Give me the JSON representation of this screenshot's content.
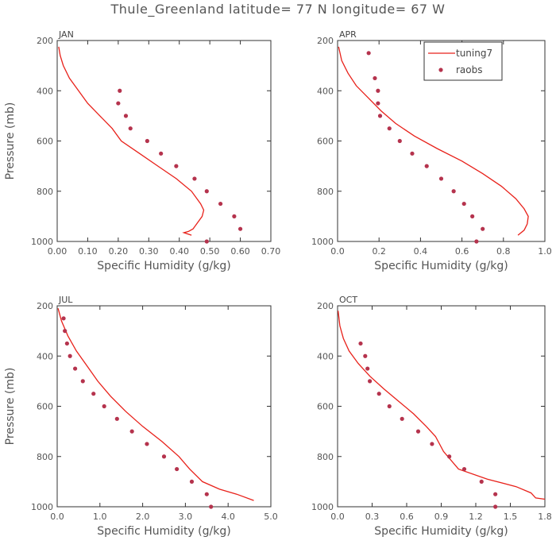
{
  "title": "Thule_Greenland  latitude= 77 N longitude= 67 W",
  "colors": {
    "model": "#e8211a",
    "obs": "#b5334d",
    "axis": "#333333"
  },
  "legend": {
    "model_label": "tuning7",
    "obs_label": "raobs"
  },
  "chart_data": [
    {
      "type": "scatter",
      "panel": "JAN",
      "xlabel": "Specific Humidity (g/kg)",
      "ylabel": "Pressure (mb)",
      "xlim": [
        0,
        0.7
      ],
      "ylim": [
        1000,
        200
      ],
      "xticks": [
        0,
        0.1,
        0.2,
        0.3,
        0.4,
        0.5,
        0.6,
        0.7
      ],
      "xtick_labels": [
        "0.00",
        "0.10",
        "0.20",
        "0.30",
        "0.40",
        "0.50",
        "0.60",
        "0.70"
      ],
      "yticks": [
        200,
        400,
        600,
        800,
        1000
      ],
      "ytick_labels": [
        "200",
        "400",
        "600",
        "800",
        "1000"
      ],
      "series": [
        {
          "name": "tuning7",
          "kind": "line",
          "points": [
            [
              0.005,
              225
            ],
            [
              0.01,
              260
            ],
            [
              0.02,
              300
            ],
            [
              0.04,
              350
            ],
            [
              0.07,
              400
            ],
            [
              0.1,
              450
            ],
            [
              0.14,
              500
            ],
            [
              0.18,
              550
            ],
            [
              0.21,
              600
            ],
            [
              0.27,
              650
            ],
            [
              0.33,
              700
            ],
            [
              0.39,
              750
            ],
            [
              0.44,
              800
            ],
            [
              0.47,
              850
            ],
            [
              0.48,
              875
            ],
            [
              0.475,
              900
            ],
            [
              0.46,
              925
            ],
            [
              0.445,
              950
            ],
            [
              0.43,
              960
            ],
            [
              0.415,
              965
            ],
            [
              0.44,
              975
            ]
          ]
        },
        {
          "name": "raobs",
          "kind": "scatter",
          "points": [
            [
              0.205,
              400
            ],
            [
              0.2,
              450
            ],
            [
              0.225,
              500
            ],
            [
              0.24,
              550
            ],
            [
              0.295,
              600
            ],
            [
              0.34,
              650
            ],
            [
              0.39,
              700
            ],
            [
              0.45,
              750
            ],
            [
              0.49,
              800
            ],
            [
              0.535,
              850
            ],
            [
              0.58,
              900
            ],
            [
              0.6,
              950
            ],
            [
              0.49,
              1000
            ]
          ]
        }
      ]
    },
    {
      "type": "scatter",
      "panel": "APR",
      "xlabel": "Specific Humidity (g/kg)",
      "ylabel": "",
      "xlim": [
        0,
        1.0
      ],
      "ylim": [
        1000,
        200
      ],
      "xticks": [
        0,
        0.2,
        0.4,
        0.6,
        0.8,
        1.0
      ],
      "xtick_labels": [
        "0.0",
        "0.2",
        "0.4",
        "0.6",
        "0.8",
        "1.0"
      ],
      "yticks": [
        200,
        400,
        600,
        800,
        1000
      ],
      "ytick_labels": [
        "200",
        "400",
        "600",
        "800",
        "1000"
      ],
      "series": [
        {
          "name": "tuning7",
          "kind": "line",
          "points": [
            [
              0.005,
              225
            ],
            [
              0.02,
              280
            ],
            [
              0.05,
              330
            ],
            [
              0.09,
              380
            ],
            [
              0.15,
              430
            ],
            [
              0.21,
              480
            ],
            [
              0.28,
              530
            ],
            [
              0.37,
              580
            ],
            [
              0.48,
              630
            ],
            [
              0.6,
              680
            ],
            [
              0.7,
              730
            ],
            [
              0.79,
              780
            ],
            [
              0.86,
              830
            ],
            [
              0.9,
              870
            ],
            [
              0.92,
              900
            ],
            [
              0.915,
              930
            ],
            [
              0.9,
              955
            ],
            [
              0.87,
              975
            ]
          ]
        },
        {
          "name": "raobs",
          "kind": "scatter",
          "points": [
            [
              0.15,
              250
            ],
            [
              0.18,
              350
            ],
            [
              0.195,
              400
            ],
            [
              0.195,
              450
            ],
            [
              0.205,
              500
            ],
            [
              0.25,
              550
            ],
            [
              0.3,
              600
            ],
            [
              0.36,
              650
            ],
            [
              0.43,
              700
            ],
            [
              0.5,
              750
            ],
            [
              0.56,
              800
            ],
            [
              0.61,
              850
            ],
            [
              0.65,
              900
            ],
            [
              0.7,
              950
            ],
            [
              0.67,
              1000
            ]
          ]
        }
      ]
    },
    {
      "type": "scatter",
      "panel": "JUL",
      "xlabel": "Specific Humidity (g/kg)",
      "ylabel": "Pressure (mb)",
      "xlim": [
        0,
        5.0
      ],
      "ylim": [
        1000,
        200
      ],
      "xticks": [
        0,
        1,
        2,
        3,
        4,
        5
      ],
      "xtick_labels": [
        "0.0",
        "1.0",
        "2.0",
        "3.0",
        "4.0",
        "5.0"
      ],
      "yticks": [
        200,
        400,
        600,
        800,
        1000
      ],
      "ytick_labels": [
        "200",
        "400",
        "600",
        "800",
        "1000"
      ],
      "series": [
        {
          "name": "tuning7",
          "kind": "line",
          "points": [
            [
              0.02,
              210
            ],
            [
              0.1,
              260
            ],
            [
              0.25,
              320
            ],
            [
              0.45,
              380
            ],
            [
              0.7,
              440
            ],
            [
              0.95,
              500
            ],
            [
              1.25,
              560
            ],
            [
              1.6,
              620
            ],
            [
              2.0,
              680
            ],
            [
              2.45,
              740
            ],
            [
              2.85,
              800
            ],
            [
              3.1,
              850
            ],
            [
              3.4,
              900
            ],
            [
              3.8,
              930
            ],
            [
              4.2,
              950
            ],
            [
              4.6,
              975
            ]
          ]
        },
        {
          "name": "raobs",
          "kind": "scatter",
          "points": [
            [
              0.15,
              250
            ],
            [
              0.18,
              300
            ],
            [
              0.23,
              350
            ],
            [
              0.3,
              400
            ],
            [
              0.42,
              450
            ],
            [
              0.6,
              500
            ],
            [
              0.85,
              550
            ],
            [
              1.1,
              600
            ],
            [
              1.4,
              650
            ],
            [
              1.75,
              700
            ],
            [
              2.1,
              750
            ],
            [
              2.5,
              800
            ],
            [
              2.8,
              850
            ],
            [
              3.15,
              900
            ],
            [
              3.5,
              950
            ],
            [
              3.6,
              1000
            ]
          ]
        }
      ]
    },
    {
      "type": "scatter",
      "panel": "OCT",
      "xlabel": "Specific Humidity (g/kg)",
      "ylabel": "",
      "xlim": [
        0,
        1.8
      ],
      "ylim": [
        1000,
        200
      ],
      "xticks": [
        0,
        0.3,
        0.6,
        0.9,
        1.2,
        1.5,
        1.8
      ],
      "xtick_labels": [
        "0.0",
        "0.3",
        "0.6",
        "0.9",
        "1.2",
        "1.5",
        "1.8"
      ],
      "yticks": [
        200,
        400,
        600,
        800,
        1000
      ],
      "ytick_labels": [
        "200",
        "400",
        "600",
        "800",
        "1000"
      ],
      "series": [
        {
          "name": "tuning7",
          "kind": "line",
          "points": [
            [
              0.005,
              220
            ],
            [
              0.02,
              280
            ],
            [
              0.05,
              330
            ],
            [
              0.1,
              380
            ],
            [
              0.18,
              430
            ],
            [
              0.28,
              480
            ],
            [
              0.4,
              530
            ],
            [
              0.53,
              580
            ],
            [
              0.66,
              630
            ],
            [
              0.77,
              680
            ],
            [
              0.85,
              720
            ],
            [
              0.92,
              780
            ],
            [
              1.05,
              850
            ],
            [
              1.3,
              890
            ],
            [
              1.55,
              920
            ],
            [
              1.68,
              945
            ],
            [
              1.72,
              965
            ],
            [
              1.8,
              970
            ]
          ]
        },
        {
          "name": "raobs",
          "kind": "scatter",
          "points": [
            [
              0.2,
              350
            ],
            [
              0.24,
              400
            ],
            [
              0.26,
              450
            ],
            [
              0.28,
              500
            ],
            [
              0.36,
              550
            ],
            [
              0.45,
              600
            ],
            [
              0.56,
              650
            ],
            [
              0.7,
              700
            ],
            [
              0.82,
              750
            ],
            [
              0.97,
              800
            ],
            [
              1.1,
              850
            ],
            [
              1.25,
              900
            ],
            [
              1.37,
              950
            ],
            [
              1.37,
              1000
            ]
          ]
        }
      ]
    }
  ]
}
